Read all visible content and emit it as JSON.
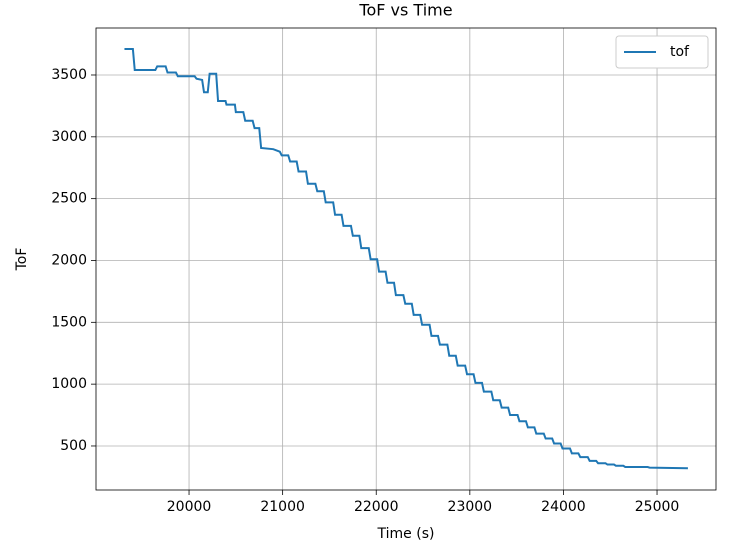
{
  "chart_data": {
    "type": "line",
    "title": "ToF vs Time",
    "x_label": "Time (s)",
    "y_label": "ToF",
    "x": [
      19310,
      19400,
      19420,
      19640,
      19660,
      19750,
      19770,
      19860,
      19880,
      20060,
      20080,
      20140,
      20160,
      20200,
      20220,
      20290,
      20310,
      20390,
      20400,
      20490,
      20500,
      20580,
      20600,
      20680,
      20700,
      20750,
      20770,
      20900,
      20970,
      20990,
      21060,
      21080,
      21150,
      21170,
      21250,
      21270,
      21350,
      21370,
      21440,
      21460,
      21540,
      21560,
      21630,
      21650,
      21730,
      21750,
      21820,
      21840,
      21920,
      21940,
      22010,
      22030,
      22100,
      22120,
      22190,
      22210,
      22290,
      22310,
      22380,
      22400,
      22470,
      22490,
      22570,
      22590,
      22660,
      22680,
      22760,
      22780,
      22850,
      22870,
      22950,
      22970,
      23040,
      23060,
      23130,
      23150,
      23230,
      23250,
      23320,
      23340,
      23410,
      23430,
      23510,
      23530,
      23600,
      23620,
      23690,
      23710,
      23790,
      23810,
      23880,
      23900,
      23970,
      23990,
      24070,
      24090,
      24160,
      24180,
      24260,
      24280,
      24350,
      24370,
      24450,
      24470,
      24540,
      24560,
      24640,
      24660,
      24900,
      24920,
      25330
    ],
    "series": [
      {
        "name": "tof",
        "color": "#1f77b4",
        "values": [
          3710,
          3710,
          3540,
          3540,
          3570,
          3570,
          3520,
          3520,
          3490,
          3490,
          3470,
          3460,
          3360,
          3360,
          3510,
          3510,
          3290,
          3290,
          3260,
          3260,
          3200,
          3200,
          3130,
          3130,
          3070,
          3070,
          2910,
          2900,
          2880,
          2850,
          2850,
          2800,
          2800,
          2720,
          2720,
          2620,
          2620,
          2560,
          2560,
          2470,
          2470,
          2370,
          2370,
          2280,
          2280,
          2200,
          2200,
          2100,
          2100,
          2010,
          2010,
          1910,
          1910,
          1820,
          1820,
          1720,
          1720,
          1650,
          1650,
          1560,
          1560,
          1480,
          1480,
          1390,
          1390,
          1320,
          1320,
          1230,
          1230,
          1150,
          1150,
          1080,
          1080,
          1010,
          1010,
          940,
          940,
          870,
          870,
          810,
          810,
          750,
          750,
          700,
          700,
          650,
          650,
          600,
          600,
          560,
          560,
          520,
          520,
          480,
          480,
          440,
          440,
          410,
          410,
          380,
          380,
          360,
          360,
          350,
          350,
          340,
          340,
          330,
          330,
          325,
          320
        ]
      }
    ],
    "xlim": [
      19006,
      25630
    ],
    "ylim": [
      144,
      3880
    ],
    "xticks": [
      20000,
      21000,
      22000,
      23000,
      24000,
      25000
    ],
    "yticks": [
      500,
      1000,
      1500,
      2000,
      2500,
      3000,
      3500
    ],
    "grid": true,
    "legend": "upper right"
  }
}
